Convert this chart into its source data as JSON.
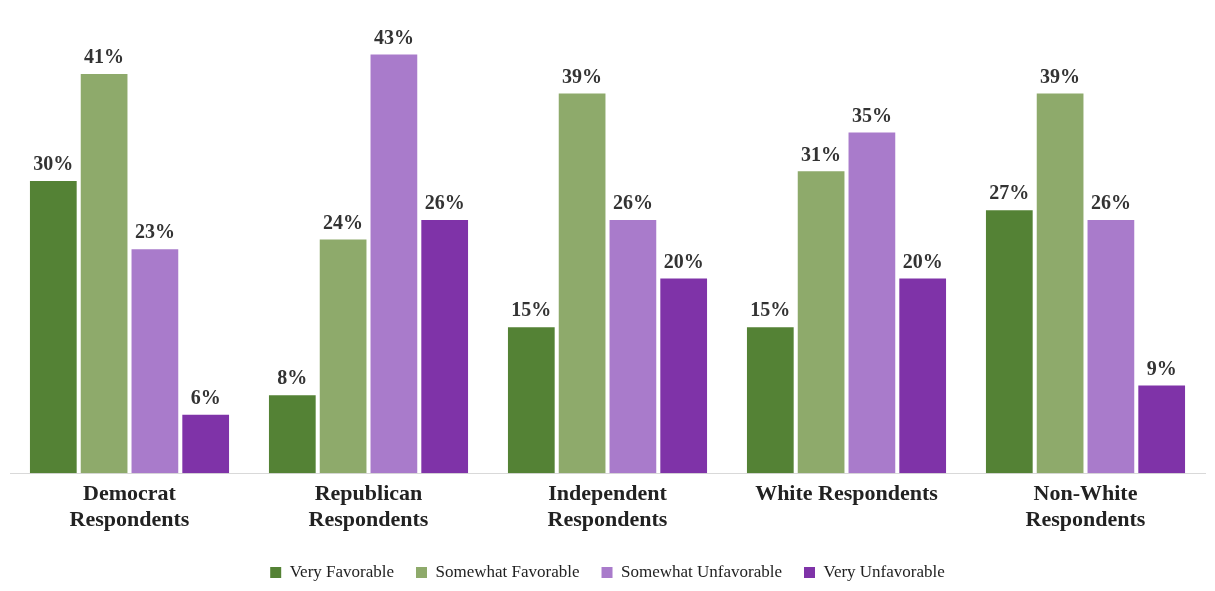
{
  "chart_data": {
    "type": "bar",
    "categories": [
      "Democrat\nRespondents",
      "Republican\nRespondents",
      "Independent\nRespondents",
      "White Respondents",
      "Non-White\nRespondents"
    ],
    "legend": "bottom",
    "grid": false,
    "series": [
      {
        "name": "Very Favorable",
        "color": "#548235",
        "values": [
          30,
          8,
          15,
          15,
          27
        ],
        "value_labels": [
          "30%",
          "8%",
          "15%",
          "15%",
          "27%"
        ]
      },
      {
        "name": "Somewhat Favorable",
        "color": "#8eaa6b",
        "values": [
          41,
          24,
          39,
          31,
          39
        ],
        "value_labels": [
          "41%",
          "24%",
          "39%",
          "31%",
          "39%"
        ]
      },
      {
        "name": "Somewhat Unfavorable",
        "color": "#a97bcb",
        "values": [
          23,
          43,
          26,
          35,
          26
        ],
        "value_labels": [
          "23%",
          "43%",
          "26%",
          "35%",
          "26%"
        ]
      },
      {
        "name": "Very Unfavorable",
        "color": "#7f33a8",
        "values": [
          6,
          26,
          20,
          20,
          9
        ],
        "value_labels": [
          "6%",
          "26%",
          "20%",
          "20%",
          "9%"
        ]
      }
    ]
  }
}
